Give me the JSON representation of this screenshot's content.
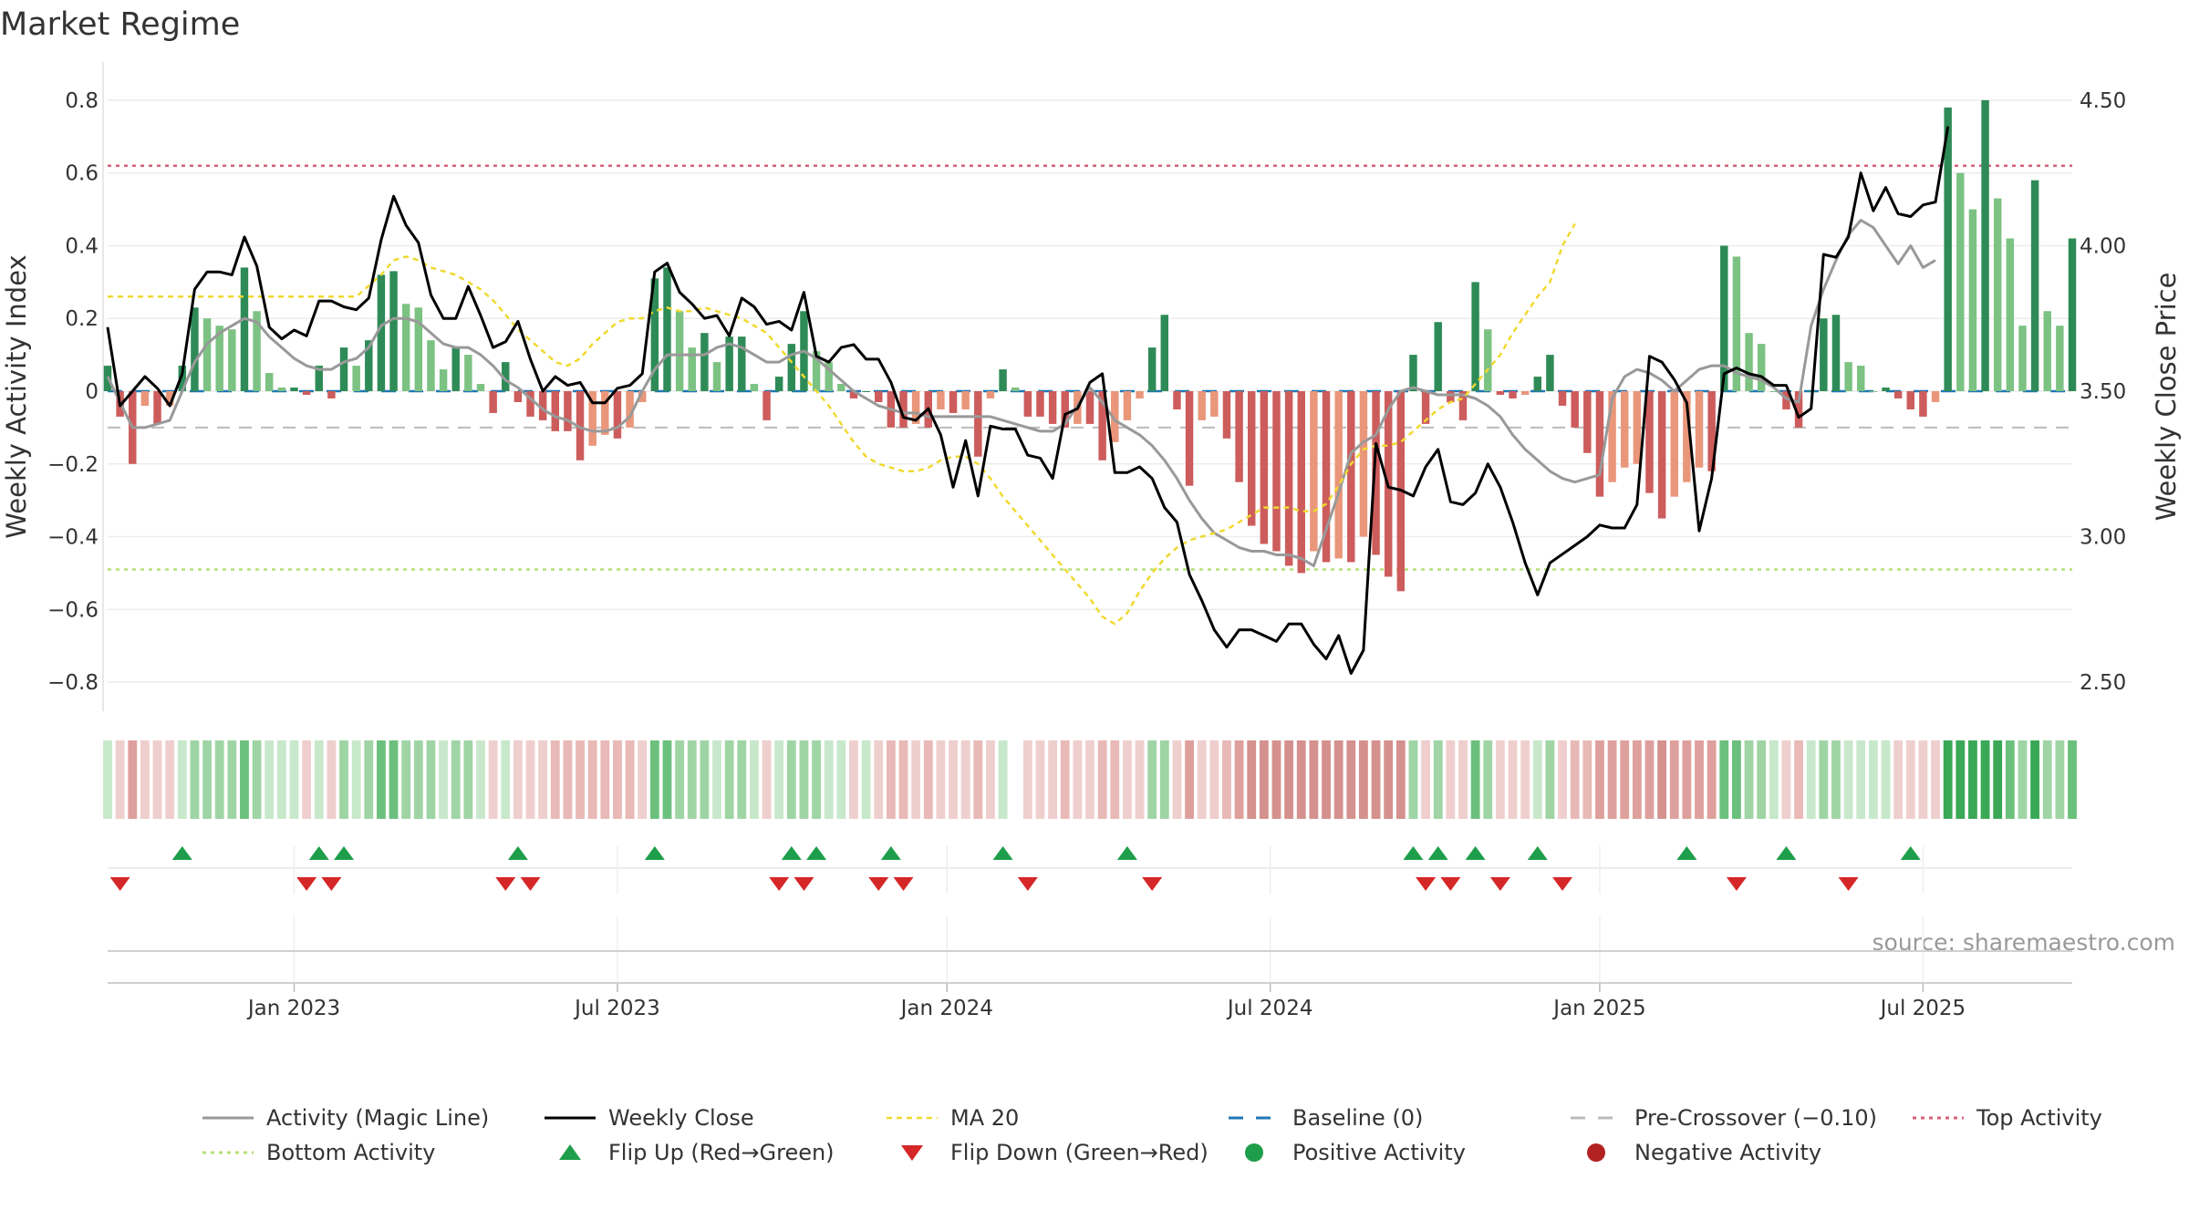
{
  "page": {
    "title": "Market Regime",
    "source": "source: sharemaestro.com"
  },
  "colors": {
    "pos_strong": "#2e8b57",
    "pos_weak": "#7cc283",
    "neg_strong": "#cd5c5c",
    "neg_weak": "#e9967a",
    "line_close": "#000000",
    "line_magic": "#999999",
    "line_ma": "#f0d930",
    "baseline": "#1f77b4",
    "pre_crossover": "#bbbbbb",
    "top": "#d6607a",
    "bottom": "#b5e07a",
    "flip_up": "#1e9e4a",
    "flip_down": "#d62728",
    "pos_dot": "#1e9e4a",
    "neg_dot": "#b22222"
  },
  "chart_data": {
    "type": "bar",
    "title": "Market Regime",
    "ylabel": "Weekly Activity Index",
    "y2label": "Weekly Close Price",
    "ylim": [
      -0.88,
      0.88
    ],
    "y_ticks": [
      0.8,
      0.6,
      0.4,
      0.2,
      0,
      -0.2,
      -0.4,
      -0.6,
      -0.8
    ],
    "y_tick_labels": [
      "0.8",
      "0.6",
      "0.4",
      "0.2",
      "0",
      "−0.2",
      "−0.4",
      "−0.6",
      "−0.8"
    ],
    "y2lim": [
      2.4,
      4.6
    ],
    "y2_ticks": [
      2.5,
      3.0,
      3.5,
      4.0,
      4.5
    ],
    "y2_tick_labels": [
      "2.50",
      "3.00",
      "3.50",
      "4.00",
      "4.50"
    ],
    "x_range_weeks": [
      0,
      158
    ],
    "x_ticks": [
      {
        "week": 15,
        "label": "Jan 2023"
      },
      {
        "week": 41,
        "label": "Jul 2023"
      },
      {
        "week": 67.5,
        "label": "Jan 2024"
      },
      {
        "week": 93.5,
        "label": "Jul 2024"
      },
      {
        "week": 120,
        "label": "Jan 2025"
      },
      {
        "week": 146,
        "label": "Jul 2025"
      }
    ],
    "reference_lines": {
      "top_activity": 0.62,
      "bottom_activity": -0.49,
      "baseline": 0,
      "pre_crossover": -0.1
    },
    "series": [
      {
        "name": "Weekly Activity Index",
        "type": "bar",
        "values": [
          0.07,
          -0.07,
          -0.2,
          -0.04,
          -0.09,
          -0.04,
          0.07,
          0.23,
          0.2,
          0.18,
          0.17,
          0.34,
          0.22,
          0.05,
          0.01,
          0.01,
          -0.01,
          0.07,
          -0.02,
          0.12,
          0.07,
          0.14,
          0.32,
          0.33,
          0.24,
          0.23,
          0.14,
          0.06,
          0.12,
          0.1,
          0.02,
          -0.06,
          0.08,
          -0.03,
          -0.07,
          -0.08,
          -0.11,
          -0.11,
          -0.19,
          -0.15,
          -0.12,
          -0.13,
          -0.1,
          -0.03,
          0.31,
          0.34,
          0.22,
          0.12,
          0.16,
          0.08,
          0.15,
          0.15,
          0.02,
          -0.08,
          0.04,
          0.13,
          0.22,
          0.11,
          0.08,
          0.02,
          -0.02,
          0.0,
          -0.03,
          -0.1,
          -0.1,
          -0.09,
          -0.1,
          -0.05,
          -0.06,
          -0.05,
          -0.18,
          -0.02,
          0.06,
          0.01,
          -0.07,
          -0.07,
          -0.09,
          -0.1,
          -0.09,
          -0.09,
          -0.19,
          -0.14,
          -0.08,
          -0.02,
          0.12,
          0.21,
          -0.05,
          -0.26,
          -0.08,
          -0.07,
          -0.13,
          -0.25,
          -0.37,
          -0.42,
          -0.44,
          -0.48,
          -0.5,
          -0.44,
          -0.47,
          -0.46,
          -0.47,
          -0.4,
          -0.45,
          -0.51,
          -0.55,
          0.1,
          -0.09,
          0.19,
          -0.03,
          -0.08,
          0.3,
          0.17,
          -0.01,
          -0.02,
          -0.01,
          0.04,
          0.1,
          -0.04,
          -0.1,
          -0.17,
          -0.29,
          -0.25,
          -0.21,
          -0.2,
          -0.28,
          -0.35,
          -0.29,
          -0.25,
          -0.21,
          -0.22,
          0.4,
          0.37,
          0.16,
          0.13,
          0.0,
          -0.05,
          -0.1,
          0.0,
          0.2,
          0.21,
          0.08,
          0.07,
          0.0,
          0.01,
          -0.02,
          -0.05,
          -0.07,
          -0.03,
          0.78,
          0.6,
          0.5,
          0.8,
          0.53,
          0.42,
          0.18,
          0.58,
          0.22,
          0.18,
          0.42
        ]
      },
      {
        "name": "Weekly Close",
        "type": "line",
        "values": [
          3.72,
          3.45,
          3.5,
          3.55,
          3.51,
          3.45,
          3.56,
          3.85,
          3.91,
          3.91,
          3.9,
          4.03,
          3.93,
          3.72,
          3.68,
          3.71,
          3.69,
          3.81,
          3.81,
          3.79,
          3.78,
          3.82,
          4.02,
          4.17,
          4.07,
          4.01,
          3.83,
          3.75,
          3.75,
          3.86,
          3.76,
          3.65,
          3.67,
          3.74,
          3.61,
          3.5,
          3.55,
          3.52,
          3.53,
          3.46,
          3.46,
          3.51,
          3.52,
          3.56,
          3.91,
          3.94,
          3.84,
          3.8,
          3.75,
          3.76,
          3.69,
          3.82,
          3.79,
          3.73,
          3.74,
          3.71,
          3.84,
          3.62,
          3.6,
          3.65,
          3.66,
          3.61,
          3.61,
          3.53,
          3.41,
          3.4,
          3.44,
          3.35,
          3.17,
          3.33,
          3.14,
          3.38,
          3.37,
          3.37,
          3.28,
          3.27,
          3.2,
          3.42,
          3.44,
          3.53,
          3.56,
          3.22,
          3.22,
          3.24,
          3.2,
          3.1,
          3.05,
          2.87,
          2.78,
          2.68,
          2.62,
          2.68,
          2.68,
          2.66,
          2.64,
          2.7,
          2.7,
          2.63,
          2.58,
          2.66,
          2.53,
          2.61,
          3.32,
          3.17,
          3.16,
          3.14,
          3.24,
          3.3,
          3.12,
          3.11,
          3.15,
          3.25,
          3.17,
          3.05,
          2.91,
          2.8,
          2.91,
          2.94,
          2.97,
          3.0,
          3.04,
          3.03,
          3.03,
          3.11,
          3.62,
          3.6,
          3.54,
          3.46,
          3.02,
          3.2,
          3.56,
          3.58,
          3.56,
          3.55,
          3.52,
          3.52,
          3.41,
          3.44,
          3.97,
          3.96,
          4.03,
          4.25,
          4.12,
          4.2,
          4.11,
          4.1,
          4.14,
          4.15,
          4.41
        ]
      },
      {
        "name": "Activity (Magic Line)",
        "type": "line",
        "values": [
          0.04,
          -0.03,
          -0.1,
          -0.1,
          -0.09,
          -0.08,
          0.0,
          0.08,
          0.13,
          0.16,
          0.18,
          0.2,
          0.19,
          0.15,
          0.12,
          0.09,
          0.07,
          0.06,
          0.06,
          0.08,
          0.09,
          0.12,
          0.18,
          0.2,
          0.2,
          0.19,
          0.16,
          0.13,
          0.12,
          0.12,
          0.1,
          0.07,
          0.03,
          0.01,
          -0.02,
          -0.05,
          -0.07,
          -0.08,
          -0.1,
          -0.11,
          -0.11,
          -0.1,
          -0.07,
          0.0,
          0.06,
          0.1,
          0.1,
          0.1,
          0.1,
          0.12,
          0.13,
          0.12,
          0.1,
          0.08,
          0.08,
          0.1,
          0.11,
          0.09,
          0.06,
          0.03,
          0.0,
          -0.02,
          -0.04,
          -0.05,
          -0.06,
          -0.06,
          -0.07,
          -0.07,
          -0.07,
          -0.07,
          -0.07,
          -0.07,
          -0.08,
          -0.09,
          -0.1,
          -0.11,
          -0.11,
          -0.09,
          -0.04,
          0.01,
          -0.03,
          -0.08,
          -0.1,
          -0.12,
          -0.15,
          -0.19,
          -0.24,
          -0.3,
          -0.35,
          -0.39,
          -0.41,
          -0.43,
          -0.44,
          -0.44,
          -0.45,
          -0.45,
          -0.46,
          -0.48,
          -0.38,
          -0.28,
          -0.17,
          -0.14,
          -0.12,
          -0.05,
          0.0,
          0.01,
          0.0,
          -0.01,
          -0.01,
          -0.01,
          -0.02,
          -0.04,
          -0.07,
          -0.12,
          -0.16,
          -0.19,
          -0.22,
          -0.24,
          -0.25,
          -0.24,
          -0.23,
          -0.02,
          0.04,
          0.06,
          0.05,
          0.03,
          0.0,
          0.03,
          0.06,
          0.07,
          0.07,
          0.05,
          0.04,
          0.03,
          0.01,
          -0.02,
          -0.03,
          0.18,
          0.28,
          0.36,
          0.43,
          0.47,
          0.45,
          0.4,
          0.35,
          0.4,
          0.34,
          0.36
        ]
      },
      {
        "name": "MA 20",
        "type": "line",
        "values": [
          0.26,
          0.26,
          0.26,
          0.26,
          0.26,
          0.26,
          0.26,
          0.26,
          0.26,
          0.26,
          0.26,
          0.26,
          0.26,
          0.26,
          0.26,
          0.26,
          0.26,
          0.26,
          0.26,
          0.26,
          0.26,
          0.29,
          0.32,
          0.36,
          0.37,
          0.36,
          0.34,
          0.33,
          0.32,
          0.3,
          0.28,
          0.25,
          0.21,
          0.17,
          0.14,
          0.11,
          0.08,
          0.07,
          0.09,
          0.13,
          0.16,
          0.19,
          0.2,
          0.2,
          0.22,
          0.23,
          0.22,
          0.22,
          0.23,
          0.22,
          0.21,
          0.2,
          0.18,
          0.16,
          0.12,
          0.08,
          0.04,
          0.0,
          -0.04,
          -0.09,
          -0.14,
          -0.18,
          -0.2,
          -0.21,
          -0.22,
          -0.22,
          -0.21,
          -0.19,
          -0.18,
          -0.18,
          -0.2,
          -0.24,
          -0.29,
          -0.33,
          -0.37,
          -0.41,
          -0.45,
          -0.49,
          -0.53,
          -0.57,
          -0.62,
          -0.64,
          -0.61,
          -0.55,
          -0.5,
          -0.46,
          -0.43,
          -0.41,
          -0.4,
          -0.39,
          -0.38,
          -0.36,
          -0.34,
          -0.32,
          -0.32,
          -0.32,
          -0.33,
          -0.33,
          -0.31,
          -0.26,
          -0.2,
          -0.16,
          -0.15,
          -0.15,
          -0.14,
          -0.11,
          -0.08,
          -0.05,
          -0.03,
          -0.02,
          0.02,
          0.06,
          0.1,
          0.16,
          0.21,
          0.26,
          0.3,
          0.4,
          0.46
        ]
      }
    ],
    "flip_up_weeks": [
      6,
      17,
      19,
      33,
      44,
      55,
      57,
      63,
      72,
      82,
      105,
      107,
      110,
      115,
      127,
      135,
      145
    ],
    "flip_down_weeks": [
      1,
      16,
      18,
      32,
      34,
      54,
      56,
      62,
      64,
      74,
      84,
      106,
      108,
      112,
      117,
      131,
      140
    ],
    "legend": [
      {
        "key": "magic",
        "label": "Activity (Magic Line)"
      },
      {
        "key": "close",
        "label": "Weekly Close"
      },
      {
        "key": "ma",
        "label": "MA 20"
      },
      {
        "key": "baseline",
        "label": "Baseline (0)"
      },
      {
        "key": "pre",
        "label": "Pre-Crossover (−0.10)"
      },
      {
        "key": "top",
        "label": "Top Activity"
      },
      {
        "key": "bottom",
        "label": "Bottom Activity"
      },
      {
        "key": "flipup",
        "label": "Flip Up (Red→Green)"
      },
      {
        "key": "flipdown",
        "label": "Flip Down (Green→Red)"
      },
      {
        "key": "posdot",
        "label": "Positive Activity"
      },
      {
        "key": "negdot",
        "label": "Negative Activity"
      }
    ]
  }
}
